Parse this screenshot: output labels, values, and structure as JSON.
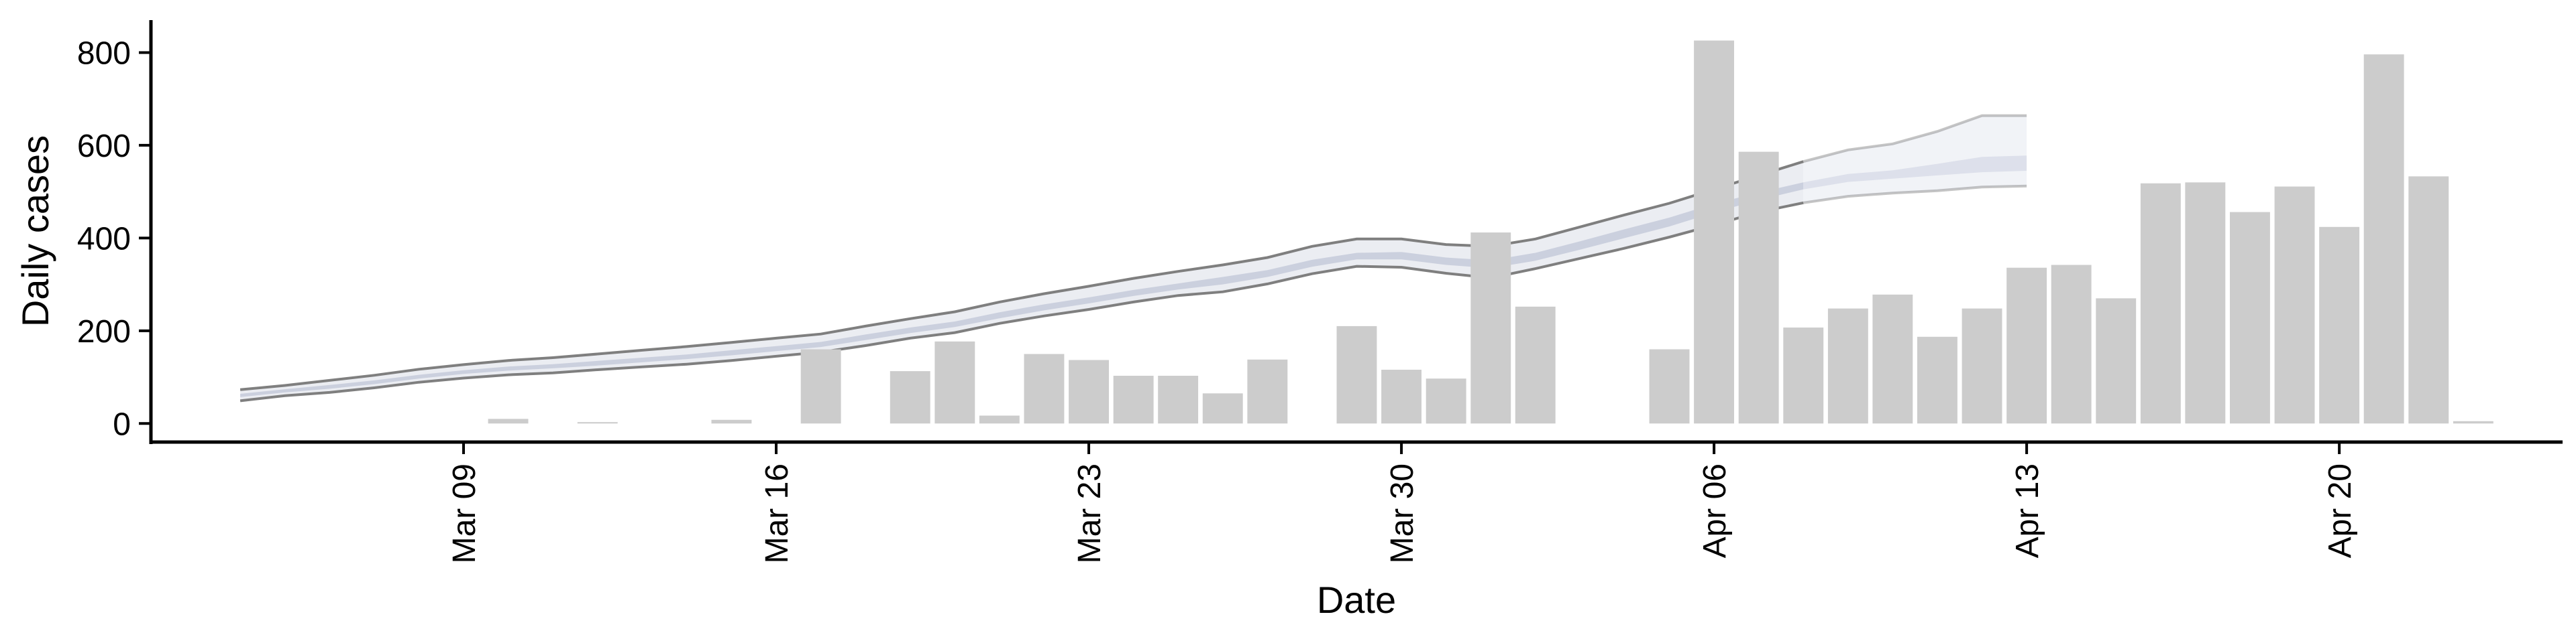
{
  "chart_data": {
    "type": "bar",
    "xlabel": "Date",
    "ylabel": "Daily cases",
    "ylim": [
      -40,
      870
    ],
    "y_ticks": [
      0,
      200,
      400,
      600,
      800
    ],
    "x_ticks": [
      "2020-03-09",
      "2020-03-16",
      "2020-03-23",
      "2020-03-30",
      "2020-04-06",
      "2020-04-13",
      "2020-04-20"
    ],
    "x_tick_labels": [
      "Mar 09",
      "Mar 16",
      "Mar 23",
      "Mar 30",
      "Apr 06",
      "Apr 13",
      "Apr 20"
    ],
    "xlim": [
      "2020-03-02",
      "2020-04-25"
    ],
    "grid": false,
    "colors": {
      "bar": "#cccccc",
      "band_outer_line": "#7f7f7f",
      "band_fill": "#c6cadb",
      "band_fill_projection": "#eef0f5",
      "axis": "#000000"
    },
    "bars": {
      "dates": [
        "2020-03-10",
        "2020-03-12",
        "2020-03-15",
        "2020-03-17",
        "2020-03-19",
        "2020-03-20",
        "2020-03-21",
        "2020-03-22",
        "2020-03-23",
        "2020-03-24",
        "2020-03-25",
        "2020-03-26",
        "2020-03-27",
        "2020-03-29",
        "2020-03-30",
        "2020-03-31",
        "2020-04-01",
        "2020-04-02",
        "2020-04-05",
        "2020-04-06",
        "2020-04-07",
        "2020-04-08",
        "2020-04-09",
        "2020-04-10",
        "2020-04-11",
        "2020-04-12",
        "2020-04-13",
        "2020-04-14",
        "2020-04-15",
        "2020-04-16",
        "2020-04-17",
        "2020-04-18",
        "2020-04-19",
        "2020-04-20",
        "2020-04-21",
        "2020-04-22",
        "2020-04-23"
      ],
      "values": [
        10,
        3,
        8,
        160,
        113,
        177,
        17,
        150,
        137,
        103,
        103,
        65,
        138,
        210,
        116,
        97,
        412,
        252,
        160,
        826,
        586,
        207,
        248,
        278,
        187,
        248,
        336,
        342,
        270,
        518,
        520,
        456,
        511,
        424,
        796,
        533,
        5
      ]
    },
    "estimate": {
      "dates": [
        "2020-03-04",
        "2020-03-05",
        "2020-03-06",
        "2020-03-07",
        "2020-03-08",
        "2020-03-09",
        "2020-03-10",
        "2020-03-11",
        "2020-03-12",
        "2020-03-13",
        "2020-03-14",
        "2020-03-15",
        "2020-03-16",
        "2020-03-17",
        "2020-03-18",
        "2020-03-19",
        "2020-03-20",
        "2020-03-21",
        "2020-03-22",
        "2020-03-23",
        "2020-03-24",
        "2020-03-25",
        "2020-03-26",
        "2020-03-27",
        "2020-03-28",
        "2020-03-29",
        "2020-03-30",
        "2020-03-31",
        "2020-04-01",
        "2020-04-02",
        "2020-04-03",
        "2020-04-04",
        "2020-04-05",
        "2020-04-06",
        "2020-04-07",
        "2020-04-08",
        "2020-04-09",
        "2020-04-10",
        "2020-04-11",
        "2020-04-12",
        "2020-04-13"
      ],
      "upper": [
        73,
        82,
        93,
        104,
        117,
        127,
        136,
        142,
        150,
        158,
        166,
        175,
        184,
        193,
        210,
        226,
        241,
        262,
        280,
        296,
        313,
        328,
        342,
        358,
        382,
        398,
        398,
        386,
        382,
        398,
        424,
        450,
        475,
        505,
        535,
        565,
        590,
        603,
        630,
        664,
        664
      ],
      "lower": [
        49,
        60,
        67,
        77,
        89,
        98,
        105,
        109,
        116,
        122,
        128,
        136,
        145,
        154,
        168,
        184,
        196,
        216,
        232,
        246,
        262,
        276,
        284,
        301,
        323,
        339,
        337,
        324,
        314,
        334,
        356,
        378,
        402,
        428,
        456,
        476,
        490,
        497,
        502,
        510,
        512
      ],
      "inner_upper": [
        64,
        74,
        83,
        93,
        105,
        115,
        123,
        128,
        135,
        142,
        149,
        158,
        167,
        176,
        192,
        207,
        220,
        240,
        257,
        272,
        288,
        302,
        316,
        331,
        353,
        368,
        370,
        358,
        352,
        368,
        393,
        419,
        444,
        474,
        498,
        520,
        538,
        546,
        560,
        575,
        578
      ],
      "inner_lower": [
        57,
        67,
        75,
        85,
        97,
        107,
        114,
        119,
        125,
        132,
        139,
        147,
        156,
        165,
        180,
        195,
        208,
        227,
        244,
        259,
        275,
        289,
        300,
        316,
        338,
        354,
        354,
        342,
        335,
        351,
        375,
        400,
        425,
        455,
        482,
        505,
        521,
        528,
        535,
        542,
        545
      ]
    },
    "projection_start": "2020-04-08"
  }
}
